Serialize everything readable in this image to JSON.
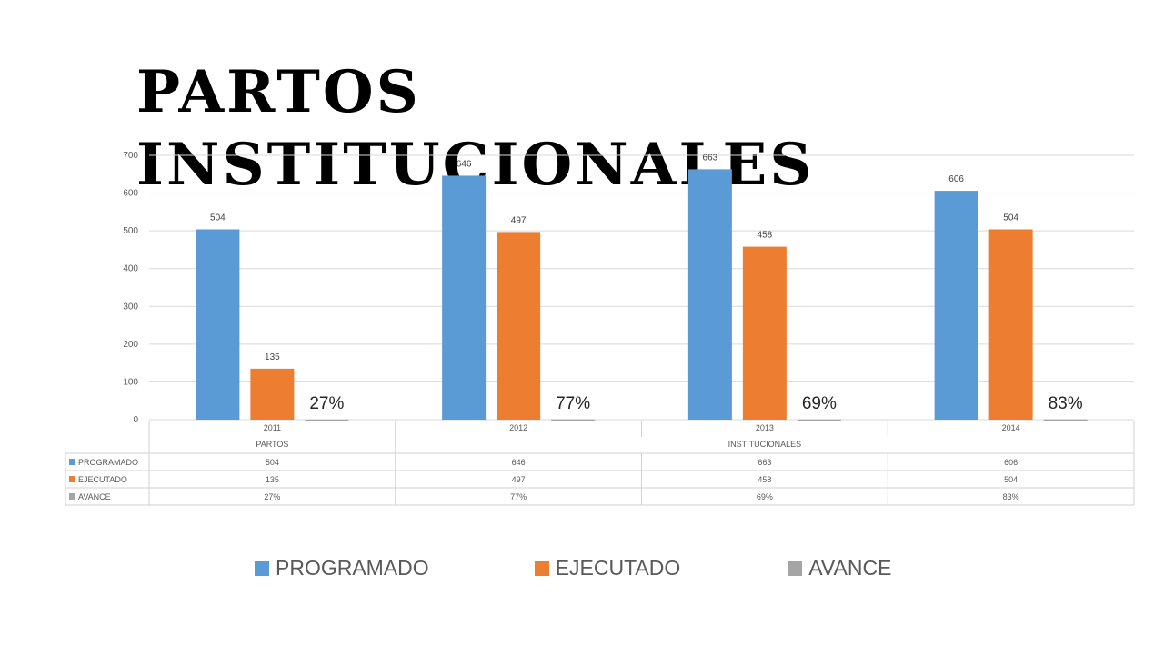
{
  "title": "Partos institucionales",
  "chart_data": {
    "type": "bar",
    "categories": [
      "2011",
      "2012",
      "2013",
      "2014"
    ],
    "category_groups": [
      {
        "label": "PARTOS",
        "span": 1
      },
      {
        "label": "INSTITUCIONALES",
        "span": 3
      }
    ],
    "series": [
      {
        "name": "PROGRAMADO",
        "values": [
          504,
          646,
          663,
          606
        ],
        "labels": [
          "504",
          "646",
          "663",
          "606"
        ],
        "color": "#5B9BD5"
      },
      {
        "name": "EJECUTADO",
        "values": [
          135,
          497,
          458,
          504
        ],
        "labels": [
          "135",
          "497",
          "458",
          "504"
        ],
        "color": "#ED7D31"
      },
      {
        "name": "AVANCE",
        "values": [
          0.27,
          0.77,
          0.69,
          0.83
        ],
        "labels": [
          "27%",
          "77%",
          "69%",
          "83%"
        ],
        "color": "#A5A5A5"
      }
    ],
    "yticks": [
      "0",
      "100",
      "200",
      "300",
      "400",
      "500",
      "600",
      "700"
    ],
    "ylim": [
      0,
      700
    ],
    "grid": true,
    "data_table": true,
    "legend": "bottom"
  }
}
